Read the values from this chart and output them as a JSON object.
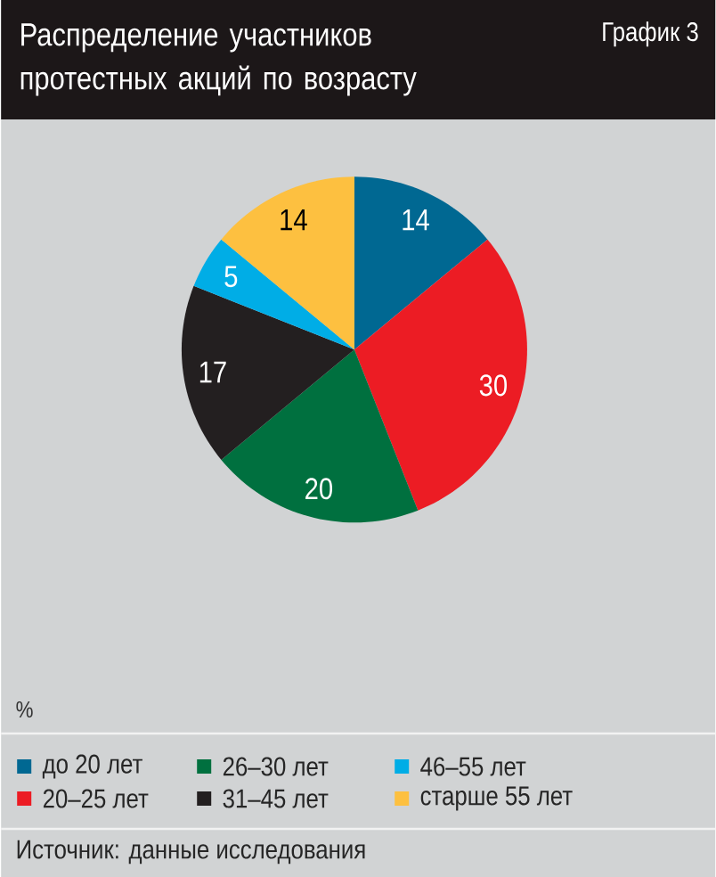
{
  "chart_data": {
    "type": "pie",
    "title": "Распределение участников протестных акций по возрасту",
    "categories": [
      "до 20 лет",
      "20–25 лет",
      "26–30 лет",
      "31–45 лет",
      "46–55 лет",
      "старше 55 лет"
    ],
    "values": [
      14,
      30,
      20,
      17,
      5,
      14
    ],
    "colors": [
      "#006892",
      "#ec1c24",
      "#00703f",
      "#231f20",
      "#00ade6",
      "#fdc040"
    ],
    "data_labels": true,
    "legend": "bottom",
    "annotations": [
      "График 3",
      "%",
      "Источник: данные исследования"
    ]
  }
}
